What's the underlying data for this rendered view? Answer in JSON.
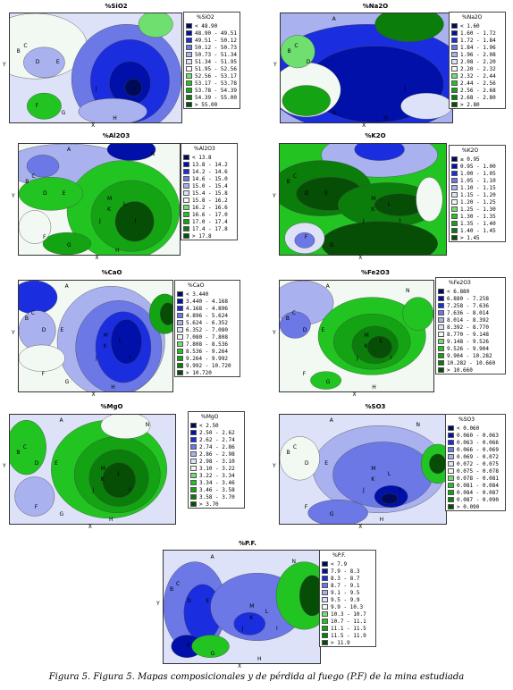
{
  "caption": "Figura 5. Figura 5. Mapas composicionales y de pérdida al fuego (P.F) de la mina estudiada",
  "axis_x": "X",
  "axis_y": "Y",
  "panels": [
    {
      "title": "%SiO2",
      "legend_title": "%SiO2",
      "rows": [
        "<   48.90",
        "48.90 -  49.51",
        "49.51 -  50.12",
        "50.12 -  50.73",
        "50.73 -  51.34",
        "51.34 -  51.95",
        "51.95 -  52.56",
        "52.56 -  53.17",
        "53.17 -  53.78",
        "53.78 -  54.39",
        "54.39 -  55.00",
        ">   55.00"
      ],
      "points": [
        "B",
        "C",
        "D",
        "E",
        "F",
        "G",
        "H",
        "I",
        "J"
      ]
    },
    {
      "title": "%Na2O",
      "legend_title": "%Na2O",
      "rows": [
        "<   1.60",
        "1.60 -  1.72",
        "1.72 -  1.84",
        "1.84 -  1.96",
        "1.96 -  2.08",
        "2.08 -  2.20",
        "2.20 -  2.32",
        "2.32 -  2.44",
        "2.44 -  2.56",
        "2.56 -  2.68",
        "2.68 -  2.80",
        ">   2.80"
      ],
      "points": [
        "A",
        "B",
        "C",
        "D",
        "G",
        "H",
        "I"
      ]
    },
    {
      "title": "%Al2O3",
      "legend_title": "%Al2O3",
      "rows": [
        "<   13.8",
        "13.8 -  14.2",
        "14.2 -  14.6",
        "14.6 -  15.0",
        "15.0 -  15.4",
        "15.4 -  15.8",
        "15.8 -  16.2",
        "16.2 -  16.6",
        "16.6 -  17.0",
        "17.0 -  17.4",
        "17.4 -  17.8",
        ">   17.8"
      ],
      "points": [
        "A",
        "B",
        "C",
        "D",
        "E",
        "F",
        "G",
        "H",
        "I",
        "J",
        "K",
        "L",
        "M",
        "N"
      ]
    },
    {
      "title": "%K2O",
      "legend_title": "%K2O",
      "rows": [
        "≤  0.95",
        "0.95 -  1.00",
        "1.00 -  1.05",
        "1.05 -  1.10",
        "1.10 -  1.15",
        "1.15 -  1.20",
        "1.20 -  1.25",
        "1.25 -  1.30",
        "1.30 -  1.35",
        "1.35 -  1.40",
        "1.40 -  1.45",
        ">   1.45"
      ],
      "points": [
        "B",
        "C",
        "D",
        "E",
        "F",
        "G",
        "I",
        "J",
        "K",
        "L",
        "M"
      ]
    },
    {
      "title": "%CaO",
      "legend_title": "%CaO",
      "rows": [
        "<   3.440",
        "3.440 -  4.168",
        "4.168 -  4.896",
        "4.896 -  5.624",
        "5.624 -  6.352",
        "6.352 -  7.080",
        "7.080 -  7.808",
        "7.808 -  8.536",
        "8.536 -  9.264",
        "9.264 -  9.992",
        "9.992 -  10.720",
        ">   10.720"
      ],
      "points": [
        "A",
        "B",
        "C",
        "D",
        "E",
        "F",
        "G",
        "H",
        "I",
        "J",
        "K",
        "L",
        "M"
      ]
    },
    {
      "title": "%Fe2O3",
      "legend_title": "%Fe2O3",
      "rows": [
        "<   6.880",
        "6.880 -  7.258",
        "7.258 -  7.636",
        "7.636 -  8.014",
        "8.014 -  8.392",
        "8.392 -  8.770",
        "8.770 -  9.148",
        "9.148 -  9.526",
        "9.526 -  9.904",
        "9.904 -  10.282",
        "10.282 -  10.660",
        ">   10.660"
      ],
      "points": [
        "A",
        "B",
        "C",
        "D",
        "E",
        "F",
        "G",
        "H",
        "I",
        "J",
        "K",
        "L",
        "M",
        "N"
      ]
    },
    {
      "title": "%MgO",
      "legend_title": "%MgO",
      "rows": [
        "<   2.50",
        "2.50 -  2.62",
        "2.62 -  2.74",
        "2.74 -  2.86",
        "2.86 -  2.98",
        "2.98 -  3.10",
        "3.10 -  3.22",
        "3.22 -  3.34",
        "3.34 -  3.46",
        "3.46 -  3.58",
        "3.58 -  3.70",
        ">   3.70"
      ],
      "points": [
        "A",
        "B",
        "C",
        "D",
        "E",
        "F",
        "G",
        "H",
        "I",
        "J",
        "K",
        "L",
        "M",
        "N"
      ]
    },
    {
      "title": "%SO3",
      "legend_title": "%SO3",
      "rows": [
        "<   0.060",
        "0.060 -  0.063",
        "0.063 -  0.066",
        "0.066 -  0.069",
        "0.069 -  0.072",
        "0.072 -  0.075",
        "0.075 -  0.078",
        "0.078 -  0.081",
        "0.081 -  0.084",
        "0.084 -  0.087",
        "0.087 -  0.090",
        ">   0.090"
      ],
      "points": [
        "A",
        "B",
        "C",
        "D",
        "E",
        "F",
        "G",
        "H",
        "I",
        "J",
        "K",
        "L",
        "M",
        "N"
      ]
    },
    {
      "title": "%P.F.",
      "legend_title": "%P.F.",
      "rows": [
        "<   7.9",
        "7.9 -  8.3",
        "8.3 -  8.7",
        "8.7 -  9.1",
        "9.1 -  9.5",
        "9.5 -  9.9",
        "9.9 -  10.3",
        "10.3 -  10.7",
        "10.7 -  11.1",
        "11.1 -  11.5",
        "11.5 -  11.9",
        ">   11.9"
      ],
      "points": [
        "A",
        "B",
        "C",
        "D",
        "E",
        "F",
        "G",
        "H",
        "I",
        "J",
        "K",
        "L",
        "M",
        "N"
      ]
    }
  ],
  "palette": [
    "#000a5a",
    "#0010a8",
    "#1a2ee0",
    "#6b78e6",
    "#a9b1ee",
    "#dde2f8",
    "#f2f8f2",
    "#6fe06f",
    "#22c422",
    "#13a313",
    "#0a7d0a",
    "#064d06"
  ]
}
